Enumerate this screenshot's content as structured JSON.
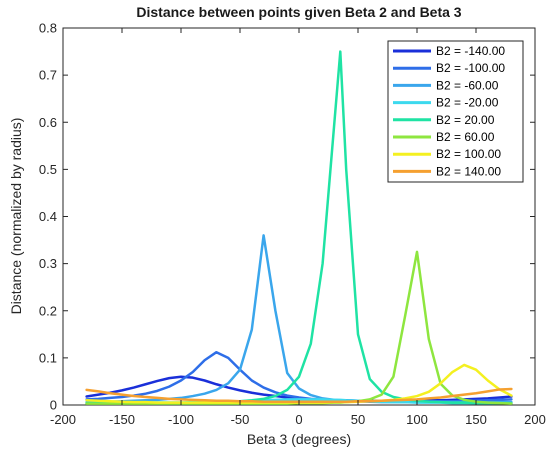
{
  "chart_data": {
    "type": "line",
    "title": "Distance between points given Beta 2 and Beta 3",
    "xlabel": "Beta 3 (degrees)",
    "ylabel": "Distance (normalized by radius)",
    "xlim": [
      -200,
      200
    ],
    "ylim": [
      0,
      0.8
    ],
    "xticks": [
      -200,
      -150,
      -100,
      -50,
      0,
      50,
      100,
      150,
      200
    ],
    "xtick_labels": [
      "-200",
      "-150",
      "-100",
      "-50",
      "0",
      "50",
      "100",
      "150",
      "200"
    ],
    "yticks": [
      0,
      0.1,
      0.2,
      0.3,
      0.4,
      0.5,
      0.6,
      0.7,
      0.8
    ],
    "ytick_labels": [
      "0",
      "0.1",
      "0.2",
      "0.3",
      "0.4",
      "0.5",
      "0.6",
      "0.7",
      "0.8"
    ],
    "grid": false,
    "legend_position": "top-right",
    "x": [
      -180,
      -170,
      -160,
      -150,
      -140,
      -130,
      -120,
      -110,
      -100,
      -90,
      -80,
      -70,
      -60,
      -50,
      -40,
      -30,
      -20,
      -10,
      0,
      10,
      20,
      30,
      35,
      40,
      50,
      60,
      70,
      80,
      90,
      100,
      110,
      120,
      130,
      140,
      150,
      160,
      170,
      180
    ],
    "series": [
      {
        "name": "B2 = -140.00",
        "color": "#1a2fd9",
        "values": [
          0.018,
          0.022,
          0.026,
          0.031,
          0.037,
          0.044,
          0.051,
          0.057,
          0.06,
          0.058,
          0.052,
          0.044,
          0.037,
          0.031,
          0.026,
          0.022,
          0.019,
          0.016,
          0.014,
          0.012,
          0.011,
          0.01,
          0.01,
          0.01,
          0.009,
          0.009,
          0.009,
          0.009,
          0.009,
          0.009,
          0.01,
          0.01,
          0.011,
          0.012,
          0.013,
          0.014,
          0.016,
          0.018
        ]
      },
      {
        "name": "B2 = -100.00",
        "color": "#2e6ee8",
        "values": [
          0.012,
          0.013,
          0.015,
          0.017,
          0.02,
          0.024,
          0.03,
          0.039,
          0.052,
          0.07,
          0.095,
          0.112,
          0.1,
          0.075,
          0.052,
          0.037,
          0.027,
          0.02,
          0.016,
          0.013,
          0.011,
          0.01,
          0.009,
          0.009,
          0.008,
          0.008,
          0.007,
          0.007,
          0.007,
          0.007,
          0.008,
          0.008,
          0.008,
          0.009,
          0.009,
          0.01,
          0.011,
          0.012
        ]
      },
      {
        "name": "B2 = -60.00",
        "color": "#3aa6ec",
        "values": [
          0.006,
          0.007,
          0.007,
          0.008,
          0.009,
          0.01,
          0.011,
          0.013,
          0.015,
          0.019,
          0.024,
          0.032,
          0.046,
          0.075,
          0.16,
          0.36,
          0.2,
          0.068,
          0.035,
          0.021,
          0.014,
          0.011,
          0.01,
          0.009,
          0.008,
          0.007,
          0.006,
          0.006,
          0.006,
          0.006,
          0.006,
          0.006,
          0.006,
          0.006,
          0.006,
          0.006,
          0.006,
          0.006
        ]
      },
      {
        "name": "B2 = -20.00",
        "color": "#3cd9ee",
        "values": [
          0.004,
          0.004,
          0.004,
          0.004,
          0.004,
          0.005,
          0.005,
          0.005,
          0.005,
          0.006,
          0.006,
          0.007,
          0.007,
          0.008,
          0.009,
          0.01,
          0.011,
          0.012,
          0.012,
          0.012,
          0.012,
          0.011,
          0.011,
          0.01,
          0.009,
          0.008,
          0.007,
          0.006,
          0.006,
          0.005,
          0.005,
          0.005,
          0.004,
          0.004,
          0.004,
          0.004,
          0.004,
          0.004
        ]
      },
      {
        "name": "B2 = 20.00",
        "color": "#1fe3a4",
        "values": [
          0.004,
          0.004,
          0.004,
          0.004,
          0.004,
          0.004,
          0.005,
          0.005,
          0.005,
          0.005,
          0.006,
          0.006,
          0.007,
          0.008,
          0.01,
          0.013,
          0.019,
          0.032,
          0.06,
          0.13,
          0.3,
          0.6,
          0.75,
          0.5,
          0.15,
          0.055,
          0.028,
          0.017,
          0.012,
          0.009,
          0.007,
          0.006,
          0.005,
          0.005,
          0.004,
          0.004,
          0.004,
          0.004
        ]
      },
      {
        "name": "B2 = 60.00",
        "color": "#8ee63f",
        "values": [
          0.003,
          0.003,
          0.003,
          0.003,
          0.003,
          0.003,
          0.003,
          0.003,
          0.003,
          0.003,
          0.003,
          0.003,
          0.003,
          0.003,
          0.003,
          0.003,
          0.003,
          0.003,
          0.004,
          0.004,
          0.004,
          0.005,
          0.005,
          0.006,
          0.008,
          0.012,
          0.022,
          0.06,
          0.19,
          0.325,
          0.14,
          0.045,
          0.02,
          0.011,
          0.007,
          0.005,
          0.004,
          0.003
        ]
      },
      {
        "name": "B2 = 100.00",
        "color": "#f4f020",
        "values": [
          0.01,
          0.009,
          0.008,
          0.007,
          0.006,
          0.006,
          0.005,
          0.005,
          0.005,
          0.005,
          0.005,
          0.005,
          0.005,
          0.005,
          0.005,
          0.005,
          0.005,
          0.005,
          0.005,
          0.005,
          0.005,
          0.006,
          0.006,
          0.006,
          0.007,
          0.008,
          0.009,
          0.011,
          0.014,
          0.019,
          0.028,
          0.046,
          0.07,
          0.085,
          0.075,
          0.052,
          0.033,
          0.02
        ]
      },
      {
        "name": "B2 = 140.00",
        "color": "#f5a030",
        "values": [
          0.032,
          0.029,
          0.025,
          0.022,
          0.019,
          0.017,
          0.015,
          0.013,
          0.012,
          0.011,
          0.01,
          0.009,
          0.009,
          0.008,
          0.008,
          0.007,
          0.007,
          0.007,
          0.007,
          0.007,
          0.007,
          0.007,
          0.007,
          0.007,
          0.008,
          0.008,
          0.009,
          0.01,
          0.011,
          0.012,
          0.014,
          0.016,
          0.019,
          0.022,
          0.025,
          0.029,
          0.033,
          0.034
        ]
      }
    ]
  }
}
